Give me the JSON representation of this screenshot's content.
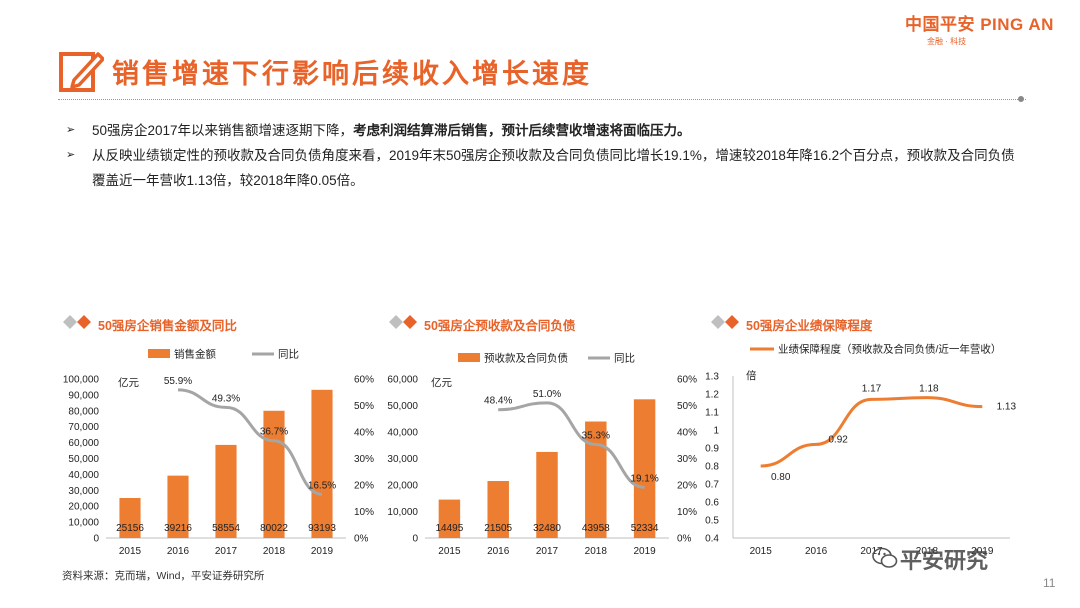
{
  "brand": {
    "name": "中国平安 PING AN",
    "sub": "金融 · 科技"
  },
  "header": {
    "title": "销售增速下行影响后续收入增长速度"
  },
  "bullets": [
    {
      "text": "50强房企2017年以来销售额增速逐期下降，",
      "bold": "考虑利润结算滞后销售，预计后续营收增速将面临压力。"
    },
    {
      "text": "从反映业绩锁定性的预收款及合同负债角度来看，2019年末50强房企预收款及合同负债同比增长19.1%，增速较2018年降16.2个百分点，预收款及合同负债覆盖近一年营收1.13倍，较2018年降0.05倍。",
      "bold": ""
    }
  ],
  "panels": {
    "p1": {
      "title": "50强房企销售金额及同比"
    },
    "p2": {
      "title": "50强房企预收款及合同负债"
    },
    "p3": {
      "title": "50强房企业绩保障程度"
    }
  },
  "colors": {
    "accent": "#e8632a",
    "bar": "#ed7d31",
    "line": "#a5a5a5",
    "diamond_gray": "#bfbfbf"
  },
  "chart_data": [
    {
      "type": "bar",
      "title": "50强房企销售金额及同比",
      "categories": [
        "2015",
        "2016",
        "2017",
        "2018",
        "2019"
      ],
      "series": [
        {
          "name": "销售金额",
          "type": "bar",
          "axis": "left",
          "values": [
            25156,
            39216,
            58554,
            80022,
            93193
          ],
          "labels": [
            "25156",
            "39216",
            "58554",
            "80022",
            "93193"
          ]
        },
        {
          "name": "同比",
          "type": "line",
          "axis": "right",
          "values": [
            null,
            55.9,
            49.3,
            36.7,
            16.5
          ],
          "labels": [
            "",
            "55.9%",
            "49.3%",
            "36.7%",
            "16.5%"
          ]
        }
      ],
      "ylabel": "亿元",
      "ylim": [
        0,
        100000
      ],
      "yticks": [
        "0",
        "10,000",
        "20,000",
        "30,000",
        "40,000",
        "50,000",
        "60,000",
        "70,000",
        "80,000",
        "90,000",
        "100,000"
      ],
      "y2lim": [
        0,
        60
      ],
      "y2ticks": [
        "0%",
        "10%",
        "20%",
        "30%",
        "40%",
        "50%",
        "60%"
      ],
      "legend": "top"
    },
    {
      "type": "bar",
      "title": "50强房企预收款及合同负债",
      "categories": [
        "2015",
        "2016",
        "2017",
        "2018",
        "2019"
      ],
      "series": [
        {
          "name": "预收款及合同负债",
          "type": "bar",
          "axis": "left",
          "values": [
            14495,
            21505,
            32480,
            43958,
            52334
          ],
          "labels": [
            "14495",
            "21505",
            "32480",
            "43958",
            "52334"
          ]
        },
        {
          "name": "同比",
          "type": "line",
          "axis": "right",
          "values": [
            null,
            48.4,
            51.0,
            35.3,
            19.1
          ],
          "labels": [
            "",
            "48.4%",
            "51.0%",
            "35.3%",
            "19.1%"
          ]
        }
      ],
      "ylabel": "亿元",
      "ylim": [
        0,
        60000
      ],
      "yticks": [
        "0",
        "10,000",
        "20,000",
        "30,000",
        "40,000",
        "50,000",
        "60,000"
      ],
      "y2lim": [
        0,
        60
      ],
      "y2ticks": [
        "0%",
        "10%",
        "20%",
        "30%",
        "40%",
        "50%",
        "60%"
      ],
      "legend": "top"
    },
    {
      "type": "line",
      "title": "50强房企业绩保障程度",
      "categories": [
        "2015",
        "2016",
        "2017",
        "2018",
        "2019"
      ],
      "series": [
        {
          "name": "业绩保障程度（预收款及合同负债/近一年营收）",
          "values": [
            0.8,
            0.92,
            1.17,
            1.18,
            1.13
          ],
          "labels": [
            "0.80",
            "0.92",
            "1.17",
            "1.18",
            "1.13"
          ]
        }
      ],
      "ylabel": "倍",
      "ylim": [
        0.4,
        1.3
      ],
      "yticks": [
        "0.4",
        "0.5",
        "0.6",
        "0.7",
        "0.8",
        "0.9",
        "1",
        "1.1",
        "1.2",
        "1.3"
      ],
      "legend": "top"
    }
  ],
  "footer": {
    "source": "资料来源：克而瑞，Wind，平安证券研究所",
    "page": "11",
    "watermark": "平安研究"
  }
}
